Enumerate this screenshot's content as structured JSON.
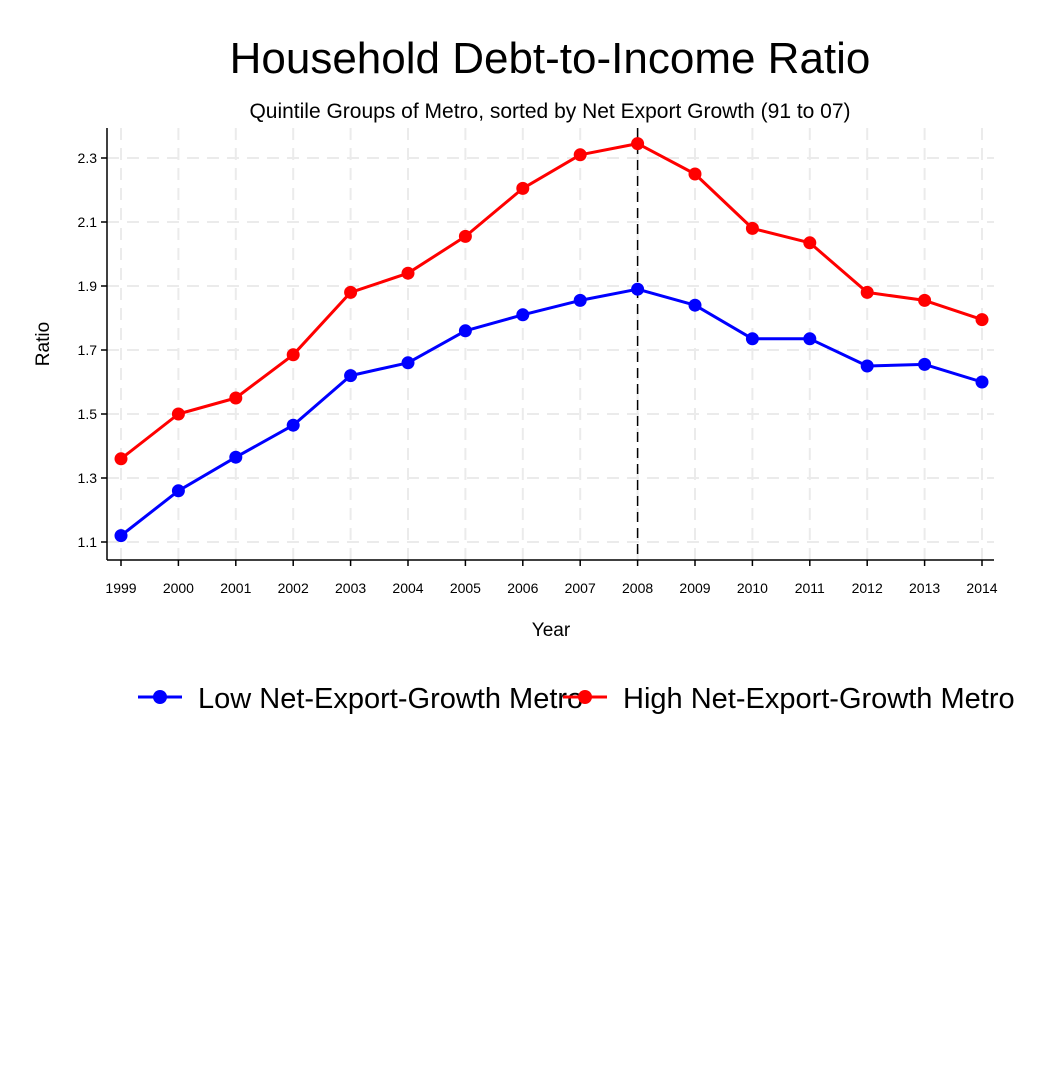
{
  "chart_data": {
    "type": "line",
    "title": "Household Debt-to-Income Ratio",
    "subtitle": "Quintile Groups of Metro, sorted by Net Export Growth (91 to 07)",
    "xlabel": "Year",
    "ylabel": "Ratio",
    "x": [
      1999,
      2000,
      2001,
      2002,
      2003,
      2004,
      2005,
      2006,
      2007,
      2008,
      2009,
      2010,
      2011,
      2012,
      2013,
      2014
    ],
    "x_tick_labels": [
      "1999",
      "2000",
      "2001",
      "2002",
      "2003",
      "2004",
      "2005",
      "2006",
      "2007",
      "2008",
      "2009",
      "2010",
      "2011",
      "2012",
      "2013",
      "2014"
    ],
    "y_ticks": [
      1.1,
      1.3,
      1.5,
      1.7,
      1.9,
      2.1,
      2.3
    ],
    "y_tick_labels": [
      "1.1",
      "1.3",
      "1.5",
      "1.7",
      "1.9",
      "2.1",
      "2.3"
    ],
    "xlim": [
      1998.8,
      2014.2
    ],
    "ylim": [
      1.05,
      2.39
    ],
    "grid": true,
    "legend_position": "bottom",
    "reference_line": {
      "x": 2008,
      "style": "dashed"
    },
    "series": [
      {
        "name": "Low Net-Export-Growth Metro",
        "color": "#0000ff",
        "values": [
          1.12,
          1.26,
          1.365,
          1.465,
          1.62,
          1.66,
          1.76,
          1.81,
          1.855,
          1.89,
          1.84,
          1.735,
          1.735,
          1.65,
          1.655,
          1.6
        ]
      },
      {
        "name": "High Net-Export-Growth Metro",
        "color": "#ff0000",
        "values": [
          1.36,
          1.5,
          1.55,
          1.685,
          1.88,
          1.94,
          2.055,
          2.205,
          2.31,
          2.345,
          2.25,
          2.08,
          2.035,
          1.88,
          1.855,
          1.795
        ]
      }
    ]
  }
}
